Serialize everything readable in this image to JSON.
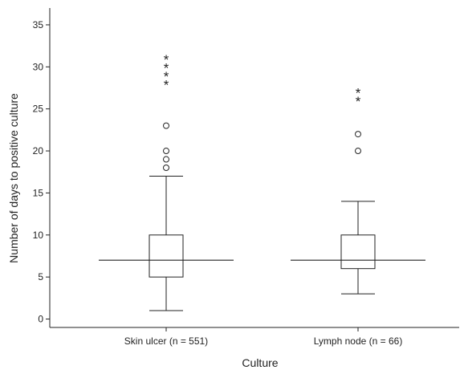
{
  "chart_data": {
    "type": "box",
    "xlabel": "Culture",
    "ylabel": "Number of days to positive culture",
    "ylim": [
      -1,
      37
    ],
    "yticks": [
      0,
      5,
      10,
      15,
      20,
      25,
      30,
      35
    ],
    "grid": false,
    "categories": [
      "Skin ulcer (n = 551)",
      "Lymph node (n = 66)"
    ],
    "boxes": [
      {
        "category": "Skin ulcer (n = 551)",
        "whisker_low": 1,
        "q1": 5,
        "median": 7,
        "q3": 10,
        "whisker_high": 17,
        "outliers": [
          18,
          19,
          20,
          23
        ],
        "extremes": [
          28,
          29,
          30,
          31
        ]
      },
      {
        "category": "Lymph node (n = 66)",
        "whisker_low": 3,
        "q1": 6,
        "median": 7,
        "q3": 10,
        "whisker_high": 14,
        "outliers": [
          20,
          22
        ],
        "extremes": [
          26,
          27
        ]
      }
    ],
    "markers": {
      "outlier": "open-circle",
      "extreme": "asterisk"
    }
  },
  "colors": {
    "stroke": "#222222",
    "background": "#ffffff"
  }
}
